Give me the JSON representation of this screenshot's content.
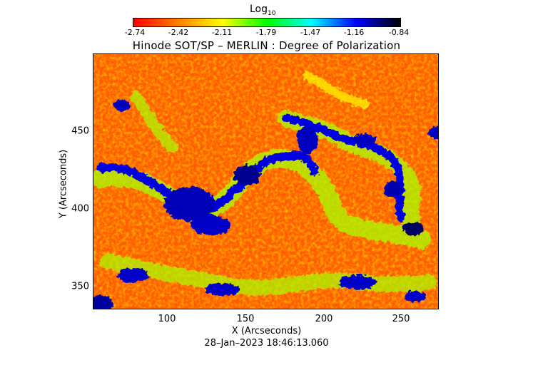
{
  "colorbar": {
    "label": "Log",
    "label_sub": "10",
    "ticks": [
      "-2.74",
      "-2.42",
      "-2.11",
      "-1.79",
      "-1.47",
      "-1.16",
      "-0.84"
    ],
    "colors": [
      "#ff0000",
      "#ff7f00",
      "#ffff00",
      "#00ff00",
      "#00ffff",
      "#0000ff",
      "#000000"
    ]
  },
  "title": "Hinode SOT/SP – MERLIN : Degree of Polarization",
  "x_axis": {
    "label": "X (Arcseconds)",
    "ticks": [
      "100",
      "150",
      "200",
      "250"
    ]
  },
  "y_axis": {
    "label": "Y (Arcseconds)",
    "ticks": [
      "450",
      "400",
      "350"
    ]
  },
  "timestamp": "28–Jan–2023 18:46:13.060"
}
